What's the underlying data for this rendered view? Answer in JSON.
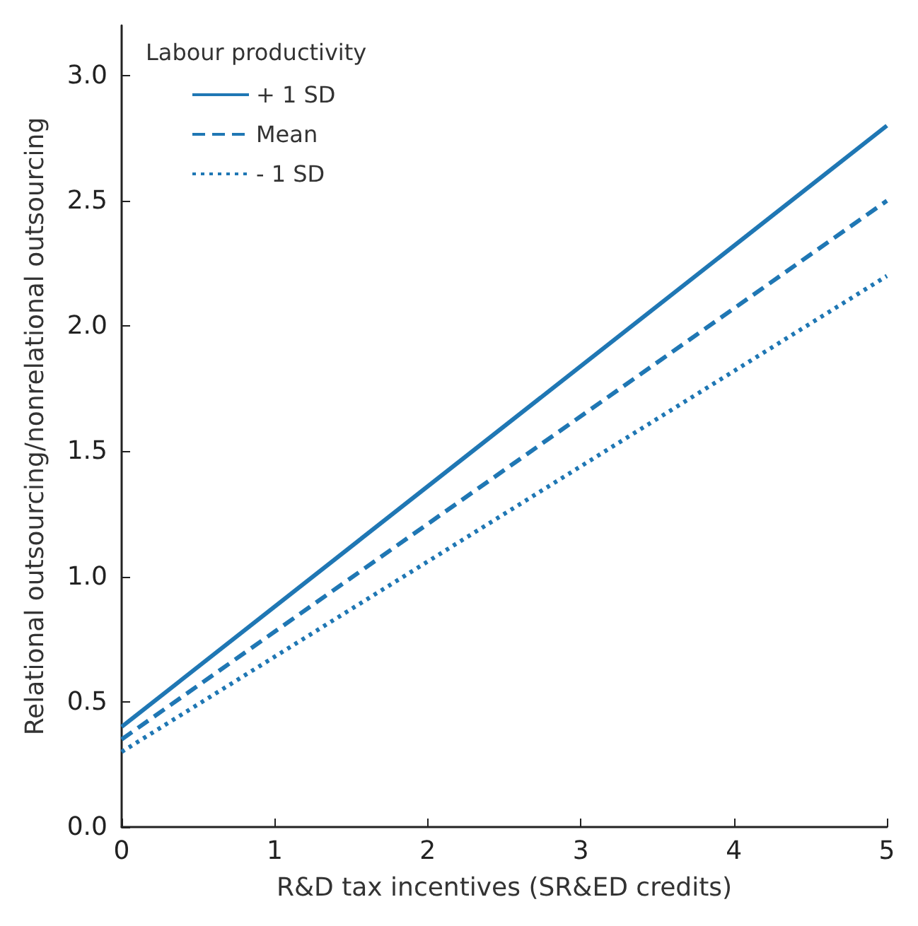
{
  "chart_data": {
    "type": "line",
    "xlabel": "R&D tax incentives (SR&ED credits)",
    "ylabel": "Relational outsourcing/nonrelational outsourcing",
    "legend_title": "Labour productivity",
    "legend": "top left",
    "marker": "none",
    "x": [
      0,
      5
    ],
    "xlim": [
      0,
      5
    ],
    "xticks": [
      0,
      1,
      2,
      3,
      4,
      5
    ],
    "ylim": [
      0,
      3.2
    ],
    "yticks": [
      {
        "value": 0,
        "label": "0.0"
      },
      0.5,
      {
        "value": 1,
        "label": "1.0"
      },
      1.5,
      {
        "value": 2,
        "label": "2.0"
      },
      2.5,
      {
        "value": 3,
        "label": "3.0"
      }
    ],
    "series": [
      {
        "name": "+ 1 SD",
        "color": "#1f77b4",
        "line_style": "solid",
        "values": [
          0.4,
          2.8
        ]
      },
      {
        "name": "Mean",
        "color": "#1f77b4",
        "line_style": "dashed",
        "values": [
          0.35,
          2.5
        ]
      },
      {
        "name": "- 1 SD",
        "color": "#1f77b4",
        "line_style": "dotted",
        "values": [
          0.3,
          2.2
        ]
      }
    ]
  }
}
